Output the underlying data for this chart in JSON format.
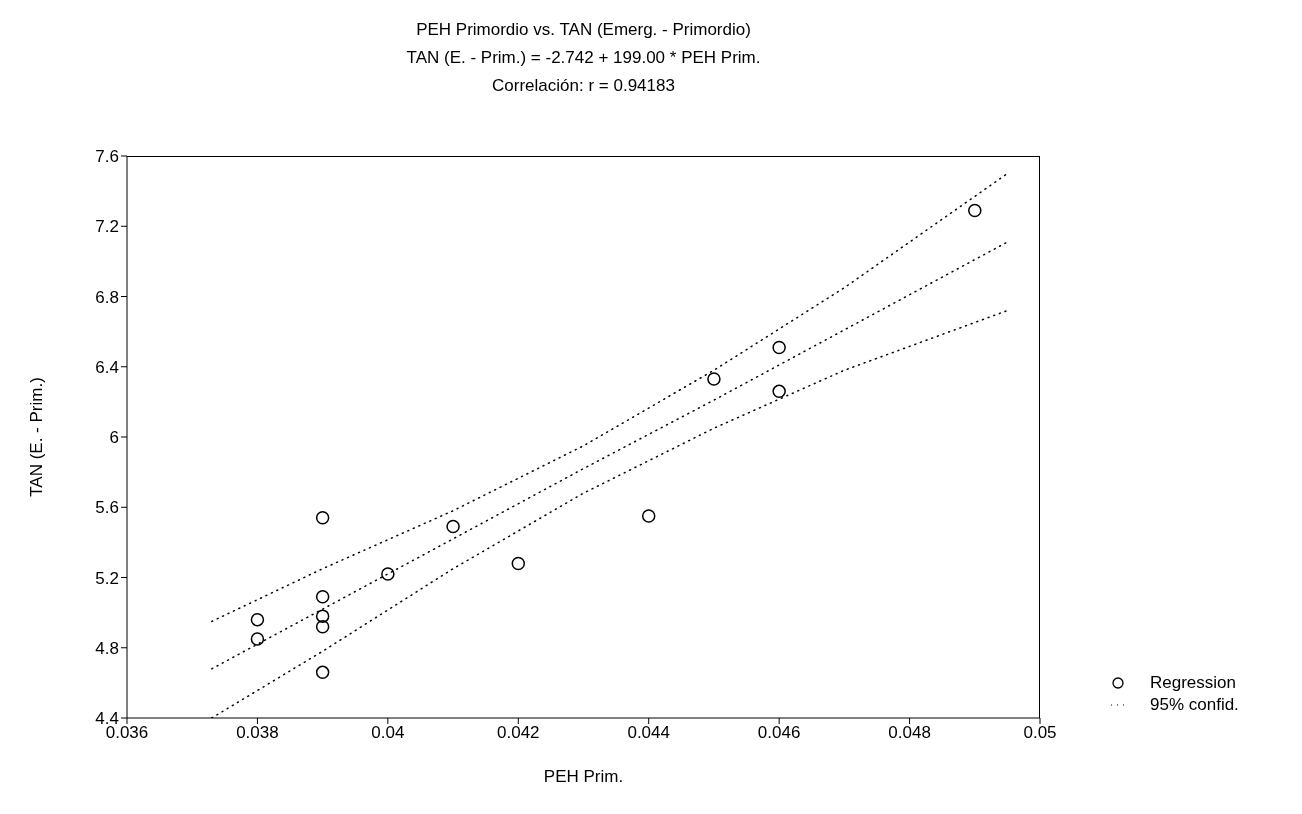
{
  "chart_data": {
    "type": "scatter",
    "title": "PEH Primordio vs. TAN (Emerg. - Primordio)",
    "subtitle": "TAN (E. - Prim.) = -2.742 + 199.00 * PEH Prim.",
    "annotations": [
      "Correlación: r = 0.94183"
    ],
    "xlabel": "PEH Prim.",
    "ylabel": "TAN (E. - Prim.)",
    "xlim": [
      0.036,
      0.05
    ],
    "xticks": [
      0.036,
      0.038,
      0.04,
      0.042,
      0.044,
      0.046,
      0.048,
      0.05
    ],
    "ylim": [
      4.4,
      7.6
    ],
    "yticks": [
      4.4,
      4.8,
      5.2,
      5.6,
      6,
      6.4,
      6.8,
      7.2,
      7.6
    ],
    "grid": false,
    "legend": "bottom right",
    "series": [
      {
        "name": "Regression",
        "color": "#000000",
        "marker": "circle",
        "x": [
          0.038,
          0.038,
          0.039,
          0.039,
          0.039,
          0.039,
          0.039,
          0.04,
          0.041,
          0.042,
          0.044,
          0.045,
          0.046,
          0.046,
          0.049
        ],
        "values": [
          4.96,
          4.85,
          5.54,
          5.09,
          4.98,
          4.92,
          4.66,
          5.22,
          5.49,
          5.28,
          5.55,
          6.33,
          6.51,
          6.26,
          7.29
        ]
      },
      {
        "type": "line",
        "color": "#000000",
        "marker": "none",
        "line_style": "dotted",
        "x": [
          0.0373,
          0.039,
          0.041,
          0.043,
          0.045,
          0.047,
          0.0495
        ],
        "values": [
          4.68,
          5.02,
          5.42,
          5.82,
          6.21,
          6.61,
          7.11
        ]
      },
      {
        "type": "line",
        "name": "95% confid.",
        "color": "#000000",
        "marker": "none",
        "line_style": "dotted",
        "x": [
          0.0373,
          0.039,
          0.041,
          0.043,
          0.045,
          0.047,
          0.0495
        ],
        "values": [
          4.95,
          5.25,
          5.58,
          5.95,
          6.38,
          6.85,
          7.5
        ]
      },
      {
        "type": "line",
        "color": "#000000",
        "marker": "none",
        "line_style": "dotted",
        "x": [
          0.0373,
          0.039,
          0.041,
          0.043,
          0.045,
          0.047,
          0.0495
        ],
        "values": [
          4.4,
          4.78,
          5.25,
          5.68,
          6.05,
          6.38,
          6.72
        ]
      }
    ]
  }
}
